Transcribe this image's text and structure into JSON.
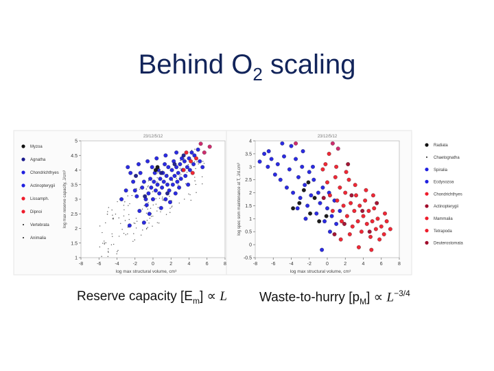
{
  "slide": {
    "title_main": "Behind O",
    "title_sub": "2",
    "title_rest": " scaling"
  },
  "caption_left": {
    "text": "Reserve capacity [E",
    "sub": "m",
    "close": "] ∝ ",
    "math": "L"
  },
  "caption_right": {
    "text": "Waste-to-hurry [p",
    "sub": "M",
    "close": "] ∝ ",
    "math": "L",
    "exp": "−3/4"
  },
  "colors": {
    "black": "#111111",
    "darkblue": "#1a1a8c",
    "blue": "#2020e0",
    "red": "#ee1c2b",
    "darkred": "#a00a2a",
    "magenta": "#cc2266"
  },
  "chart_data": [
    {
      "type": "scatter",
      "header": "23/12/5/12",
      "xlabel": "log max structural volume, cm³",
      "ylabel": "log max reserve capacity, J/cm³",
      "xlim": [
        -8,
        8
      ],
      "ylim": [
        1,
        5
      ],
      "xticks": [
        "-8",
        "-6",
        "-4",
        "-2",
        "0",
        "2",
        "4",
        "6",
        "8"
      ],
      "yticks": [
        "1",
        "1.5",
        "2",
        "2.5",
        "3",
        "3.5",
        "4",
        "4.5",
        "5"
      ],
      "legend_position": "left",
      "legend": [
        {
          "label": "Myzoa",
          "color": "#111111",
          "marker": "dot"
        },
        {
          "label": "Agnatha",
          "color": "#1a1a8c",
          "marker": "dot"
        },
        {
          "label": "Chondrichthyes",
          "color": "#2020e0",
          "marker": "dot"
        },
        {
          "label": "Actinopterygii",
          "color": "#2020e0",
          "marker": "dot"
        },
        {
          "label": "Lissamph.",
          "color": "#ee1c2b",
          "marker": "dot"
        },
        {
          "label": "Dipnoi",
          "color": "#ee1c2b",
          "marker": "dot"
        },
        {
          "label": "Vertebrata",
          "color": "#111111",
          "marker": "point"
        },
        {
          "label": "Animalia",
          "color": "#111111",
          "marker": "point"
        }
      ],
      "series": [
        {
          "color": "#2020e0",
          "points": [
            [
              -2.5,
              3.9
            ],
            [
              -2.2,
              3.6
            ],
            [
              -2.0,
              3.3
            ],
            [
              -1.8,
              3.1
            ],
            [
              -1.5,
              2.6
            ],
            [
              -1.4,
              3.9
            ],
            [
              -1.2,
              3.4
            ],
            [
              -1.0,
              3.6
            ],
            [
              -0.8,
              3.0
            ],
            [
              -0.7,
              2.8
            ],
            [
              -0.5,
              3.2
            ],
            [
              -0.3,
              3.7
            ],
            [
              -0.2,
              3.4
            ],
            [
              0.0,
              3.0
            ],
            [
              0.1,
              3.6
            ],
            [
              0.2,
              3.9
            ],
            [
              0.3,
              3.3
            ],
            [
              0.5,
              3.5
            ],
            [
              0.6,
              4.0
            ],
            [
              0.7,
              3.2
            ],
            [
              0.8,
              3.7
            ],
            [
              1.0,
              3.4
            ],
            [
              1.1,
              3.9
            ],
            [
              1.2,
              3.6
            ],
            [
              1.3,
              4.2
            ],
            [
              1.4,
              3.0
            ],
            [
              1.5,
              3.8
            ],
            [
              1.6,
              3.5
            ],
            [
              1.7,
              4.1
            ],
            [
              1.8,
              3.3
            ],
            [
              2.0,
              3.7
            ],
            [
              2.1,
              4.0
            ],
            [
              2.2,
              3.5
            ],
            [
              2.3,
              4.3
            ],
            [
              2.4,
              3.8
            ],
            [
              2.5,
              3.2
            ],
            [
              2.6,
              4.1
            ],
            [
              2.7,
              3.6
            ],
            [
              2.8,
              3.9
            ],
            [
              3.0,
              4.2
            ],
            [
              3.1,
              3.7
            ],
            [
              3.2,
              4.4
            ],
            [
              3.3,
              4.0
            ],
            [
              3.5,
              4.3
            ],
            [
              3.6,
              3.8
            ],
            [
              3.8,
              4.1
            ],
            [
              4.0,
              4.4
            ],
            [
              4.1,
              4.0
            ],
            [
              4.3,
              4.6
            ],
            [
              4.5,
              4.2
            ],
            [
              4.6,
              4.5
            ],
            [
              5.0,
              4.7
            ],
            [
              5.2,
              4.3
            ],
            [
              5.5,
              4.1
            ],
            [
              -3.0,
              3.3
            ],
            [
              -2.8,
              4.1
            ],
            [
              -3.5,
              3.0
            ],
            [
              -1.6,
              4.2
            ],
            [
              -0.6,
              4.3
            ],
            [
              0.4,
              4.4
            ],
            [
              1.9,
              2.9
            ],
            [
              2.9,
              3.4
            ],
            [
              3.9,
              3.5
            ],
            [
              -1.0,
              2.2
            ],
            [
              -0.4,
              2.5
            ],
            [
              0.9,
              2.7
            ],
            [
              -2.6,
              2.1
            ],
            [
              1.4,
              4.5
            ],
            [
              2.6,
              4.6
            ],
            [
              -0.1,
              4.1
            ]
          ]
        },
        {
          "color": "#1a1a8c",
          "points": [
            [
              -1.9,
              3.8
            ],
            [
              0.9,
              3.9
            ],
            [
              2.4,
              4.2
            ],
            [
              3.4,
              4.5
            ],
            [
              -0.9,
              3.1
            ],
            [
              1.6,
              3.2
            ]
          ]
        },
        {
          "color": "#ee1c2b",
          "points": [
            [
              3.4,
              4.0
            ],
            [
              4.2,
              4.3
            ],
            [
              4.8,
              4.4
            ],
            [
              3.7,
              4.6
            ],
            [
              4.4,
              3.9
            ]
          ]
        },
        {
          "color": "#111111",
          "points": [
            [
              0.3,
              4.0
            ],
            [
              0.5,
              4.1
            ]
          ]
        },
        {
          "color": "#cc2266",
          "points": [
            [
              5.7,
              4.6
            ],
            [
              6.3,
              4.8
            ],
            [
              5.3,
              4.9
            ]
          ]
        }
      ]
    },
    {
      "type": "scatter",
      "header": "23/12/5/12",
      "xlabel": "log max structural volume, cm³",
      "ylabel": "log spec som maintenance at T, J/d.cm³",
      "xlim": [
        -8,
        8
      ],
      "ylim": [
        -0.5,
        4
      ],
      "xticks": [
        "-8",
        "-6",
        "-4",
        "-2",
        "0",
        "2",
        "4",
        "6",
        "8"
      ],
      "yticks": [
        "-0.5",
        "0",
        "0.5",
        "1",
        "1.5",
        "2",
        "2.5",
        "3",
        "3.5",
        "4"
      ],
      "legend_position": "right",
      "legend": [
        {
          "label": "Radiata",
          "color": "#111111",
          "marker": "dot"
        },
        {
          "label": "Chaetognatha",
          "color": "#111111",
          "marker": "point"
        },
        {
          "label": "Spiralia",
          "color": "#2020e0",
          "marker": "dot"
        },
        {
          "label": "Ecdysozoa",
          "color": "#2020e0",
          "marker": "dot"
        },
        {
          "label": "Chondrichthyes",
          "color": "#ee1c2b",
          "marker": "dot"
        },
        {
          "label": "Actinopterygii",
          "color": "#a00a2a",
          "marker": "dot"
        },
        {
          "label": "Mammalia",
          "color": "#ee1c2b",
          "marker": "dot"
        },
        {
          "label": "Tetrapoda",
          "color": "#ee1c2b",
          "marker": "dot"
        },
        {
          "label": "Deuterostomata",
          "color": "#a00a2a",
          "marker": "dot"
        }
      ],
      "series": [
        {
          "color": "#2020e0",
          "points": [
            [
              -7.5,
              3.2
            ],
            [
              -7.0,
              3.5
            ],
            [
              -6.6,
              3.0
            ],
            [
              -6.2,
              3.3
            ],
            [
              -5.8,
              2.7
            ],
            [
              -5.5,
              3.1
            ],
            [
              -5.2,
              2.5
            ],
            [
              -4.8,
              3.4
            ],
            [
              -4.5,
              2.2
            ],
            [
              -4.2,
              2.9
            ],
            [
              -3.8,
              2.0
            ],
            [
              -3.5,
              3.3
            ],
            [
              -3.2,
              2.6
            ],
            [
              -3.0,
              1.8
            ],
            [
              -2.8,
              3.0
            ],
            [
              -2.5,
              2.3
            ],
            [
              -2.2,
              1.5
            ],
            [
              -2.0,
              2.8
            ],
            [
              -1.8,
              1.9
            ],
            [
              -1.5,
              2.5
            ],
            [
              -1.2,
              1.2
            ],
            [
              -1.0,
              2.0
            ],
            [
              -0.8,
              1.6
            ],
            [
              -0.5,
              2.2
            ],
            [
              -0.3,
              0.9
            ],
            [
              0.0,
              1.4
            ],
            [
              0.2,
              2.0
            ],
            [
              0.5,
              1.1
            ],
            [
              0.8,
              1.7
            ],
            [
              1.0,
              0.8
            ],
            [
              -2.7,
              3.6
            ],
            [
              -4.0,
              3.8
            ],
            [
              -1.6,
              3.0
            ],
            [
              -3.3,
              1.4
            ],
            [
              -6.5,
              3.6
            ],
            [
              0.3,
              0.5
            ],
            [
              -0.6,
              -0.2
            ],
            [
              1.4,
              1.3
            ],
            [
              -2.4,
              1.0
            ],
            [
              -5.0,
              3.9
            ]
          ]
        },
        {
          "color": "#ee1c2b",
          "points": [
            [
              -0.5,
              2.9
            ],
            [
              0.0,
              2.4
            ],
            [
              0.3,
              1.9
            ],
            [
              0.6,
              1.3
            ],
            [
              0.9,
              2.6
            ],
            [
              1.1,
              1.7
            ],
            [
              1.4,
              2.2
            ],
            [
              1.6,
              0.9
            ],
            [
              1.8,
              1.5
            ],
            [
              2.0,
              2.0
            ],
            [
              2.2,
              1.1
            ],
            [
              2.4,
              2.5
            ],
            [
              2.6,
              1.6
            ],
            [
              2.8,
              0.7
            ],
            [
              3.0,
              1.3
            ],
            [
              3.2,
              1.9
            ],
            [
              3.4,
              0.9
            ],
            [
              3.6,
              1.5
            ],
            [
              3.8,
              0.5
            ],
            [
              4.0,
              1.1
            ],
            [
              4.2,
              1.7
            ],
            [
              4.4,
              0.8
            ],
            [
              4.6,
              1.3
            ],
            [
              4.8,
              0.3
            ],
            [
              5.0,
              0.9
            ],
            [
              5.2,
              1.4
            ],
            [
              5.4,
              0.6
            ],
            [
              5.6,
              1.0
            ],
            [
              5.8,
              0.2
            ],
            [
              6.0,
              0.7
            ],
            [
              6.3,
              0.4
            ],
            [
              6.6,
              0.9
            ],
            [
              0.2,
              3.5
            ],
            [
              -0.2,
              3.1
            ],
            [
              1.0,
              3.0
            ],
            [
              2.1,
              2.8
            ],
            [
              3.1,
              2.3
            ],
            [
              4.3,
              2.1
            ],
            [
              5.1,
              1.9
            ],
            [
              6.4,
              1.2
            ],
            [
              7.0,
              0.6
            ],
            [
              3.5,
              -0.1
            ],
            [
              1.5,
              0.2
            ],
            [
              2.5,
              0.4
            ],
            [
              4.9,
              -0.2
            ]
          ]
        },
        {
          "color": "#a00a2a",
          "points": [
            [
              0.8,
              0.4
            ],
            [
              1.9,
              0.8
            ],
            [
              2.7,
              1.9
            ],
            [
              3.9,
              1.3
            ],
            [
              4.7,
              0.5
            ],
            [
              5.5,
              1.6
            ],
            [
              2.3,
              3.1
            ],
            [
              -0.4,
              1.8
            ]
          ]
        },
        {
          "color": "#111111",
          "points": [
            [
              -2.1,
              2.4
            ],
            [
              -2.6,
              2.1
            ],
            [
              -3.1,
              1.6
            ],
            [
              -1.4,
              1.8
            ],
            [
              -1.9,
              1.2
            ],
            [
              -0.9,
              0.9
            ],
            [
              -3.8,
              1.4
            ],
            [
              -0.1,
              1.1
            ]
          ]
        },
        {
          "color": "#cc2266",
          "points": [
            [
              -3.5,
              3.9
            ],
            [
              0.6,
              3.9
            ],
            [
              1.2,
              3.7
            ]
          ]
        }
      ]
    }
  ]
}
